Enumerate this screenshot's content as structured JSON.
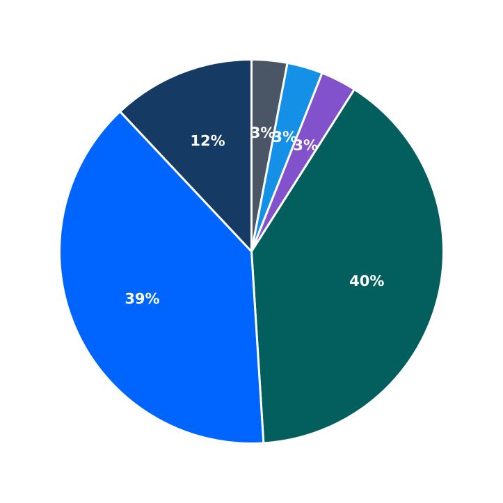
{
  "chart_data": {
    "type": "pie",
    "start_angle_deg": 90,
    "direction": "clockwise",
    "slices": [
      {
        "label": "3%",
        "value": 3,
        "color": "#4a5565"
      },
      {
        "label": "3%",
        "value": 3,
        "color": "#1490e6"
      },
      {
        "label": "3%",
        "value": 3,
        "color": "#8152cc"
      },
      {
        "label": "40%",
        "value": 40,
        "color": "#025f5d"
      },
      {
        "label": "39%",
        "value": 39,
        "color": "#0064fe"
      },
      {
        "label": "12%",
        "value": 12,
        "color": "#153a63"
      }
    ]
  }
}
